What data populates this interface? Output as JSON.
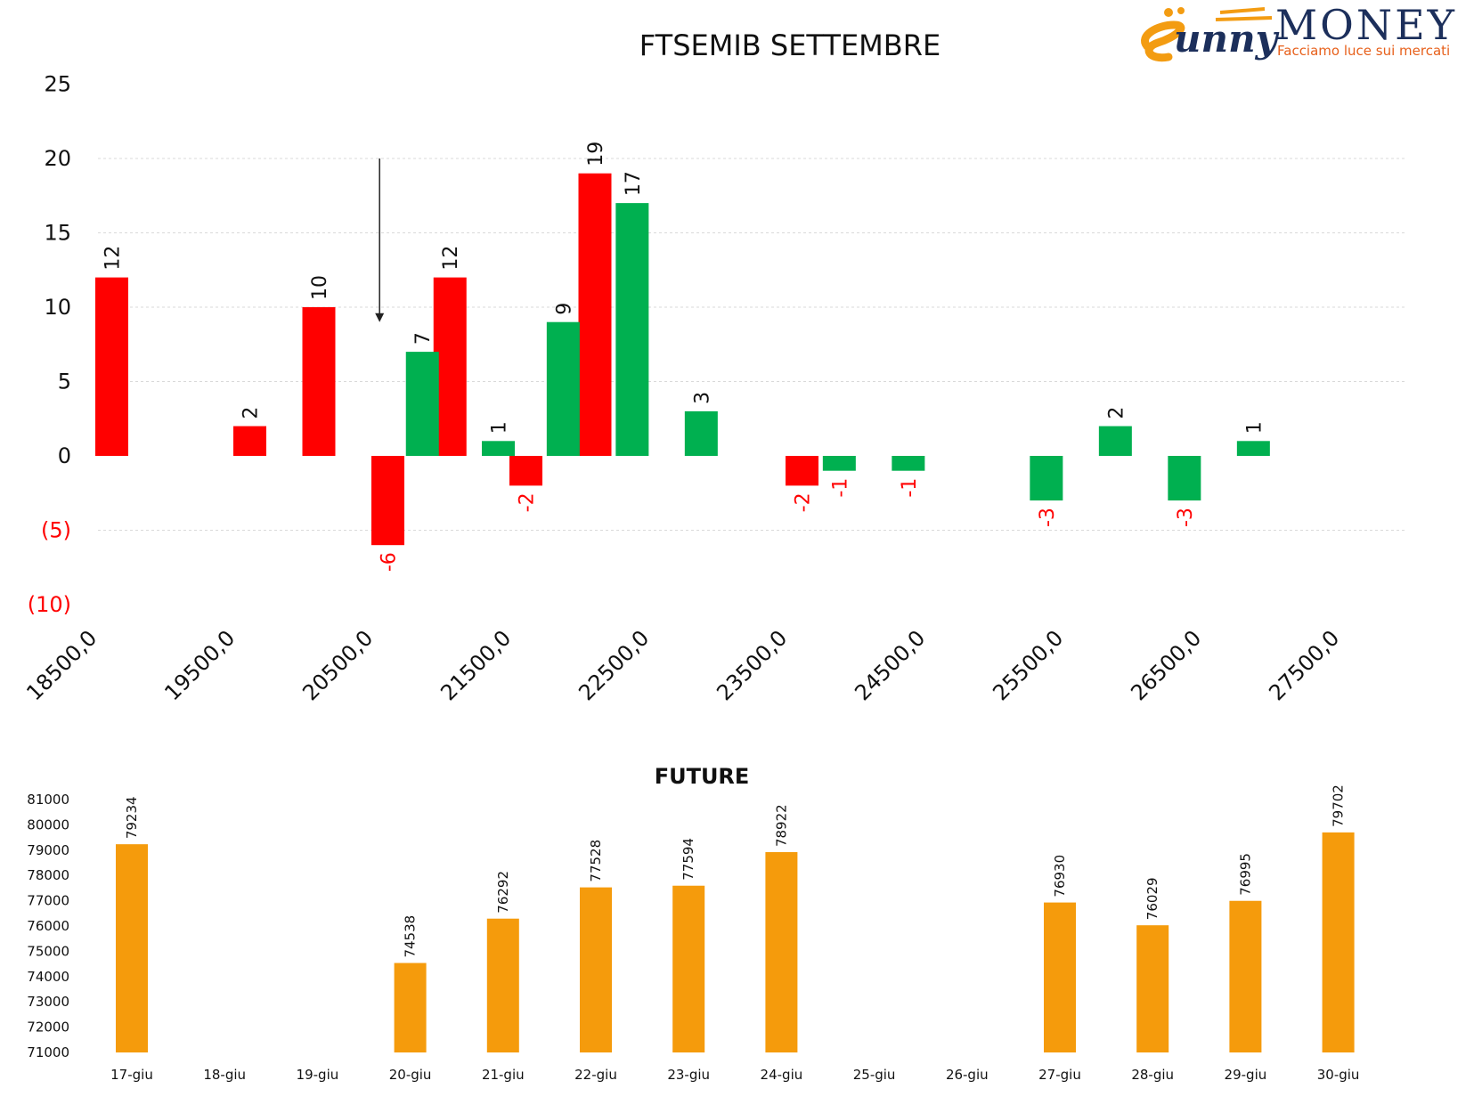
{
  "logo": {
    "brand_prefix": "unny",
    "brand_main": "MONEY",
    "tagline": "Facciamo luce sui mercati",
    "colors": {
      "navy": "#1c2f5b",
      "orange": "#f39c12",
      "red_orange": "#e7601b"
    }
  },
  "colors": {
    "positive": "#00b050",
    "negative": "#ff0000",
    "future": "#f59b0c",
    "neg_axis_label": "#ff0000"
  },
  "chart_data": [
    {
      "type": "bar",
      "title": "FTSEMIB SETTEMBRE",
      "xlabel": "",
      "ylabel": "",
      "ylim": [
        -10,
        25
      ],
      "yticks": [
        -10,
        -5,
        0,
        5,
        10,
        15,
        20,
        25
      ],
      "ytick_labels": [
        "(10)",
        "(5)",
        "0",
        "5",
        "10",
        "15",
        "20",
        "25"
      ],
      "xlim": [
        18500,
        28000
      ],
      "xticks": [
        18500,
        19500,
        20500,
        21500,
        22500,
        23500,
        24500,
        25500,
        26500,
        27500
      ],
      "xtick_labels": [
        "18500,0",
        "19500,0",
        "20500,0",
        "21500,0",
        "22500,0",
        "23500,0",
        "24500,0",
        "25500,0",
        "26500,0",
        "27500,0"
      ],
      "grid": true,
      "arrow_annotation": {
        "x": 20540,
        "y_from": 20,
        "y_to": 9
      },
      "series": [
        {
          "color": "red",
          "points": [
            {
              "x": 18600,
              "y": 12
            },
            {
              "x": 19600,
              "y": 2
            },
            {
              "x": 20100,
              "y": 10
            },
            {
              "x": 20600,
              "y": -6
            },
            {
              "x": 21050,
              "y": 12
            },
            {
              "x": 21600,
              "y": -2
            },
            {
              "x": 22100,
              "y": 19
            },
            {
              "x": 23600,
              "y": -2
            }
          ]
        },
        {
          "color": "green",
          "points": [
            {
              "x": 20850,
              "y": 7
            },
            {
              "x": 21400,
              "y": 1
            },
            {
              "x": 21870,
              "y": 9
            },
            {
              "x": 22370,
              "y": 17
            },
            {
              "x": 22870,
              "y": 3
            },
            {
              "x": 23870,
              "y": -1
            },
            {
              "x": 24370,
              "y": -1
            },
            {
              "x": 25370,
              "y": -3
            },
            {
              "x": 25870,
              "y": 2
            },
            {
              "x": 26370,
              "y": -3
            },
            {
              "x": 26870,
              "y": 1
            }
          ]
        }
      ]
    },
    {
      "type": "bar",
      "title": "FUTURE",
      "xlabel": "",
      "ylabel": "",
      "ylim": [
        71000,
        81000
      ],
      "yticks": [
        71000,
        72000,
        73000,
        74000,
        75000,
        76000,
        77000,
        78000,
        79000,
        80000,
        81000
      ],
      "categories": [
        "17-giu",
        "18-giu",
        "19-giu",
        "20-giu",
        "21-giu",
        "22-giu",
        "23-giu",
        "24-giu",
        "25-giu",
        "26-giu",
        "27-giu",
        "28-giu",
        "29-giu",
        "30-giu"
      ],
      "values": [
        79234,
        null,
        null,
        74538,
        76292,
        77528,
        77594,
        78922,
        null,
        null,
        76930,
        76029,
        76995,
        79702
      ],
      "grid": false
    }
  ]
}
